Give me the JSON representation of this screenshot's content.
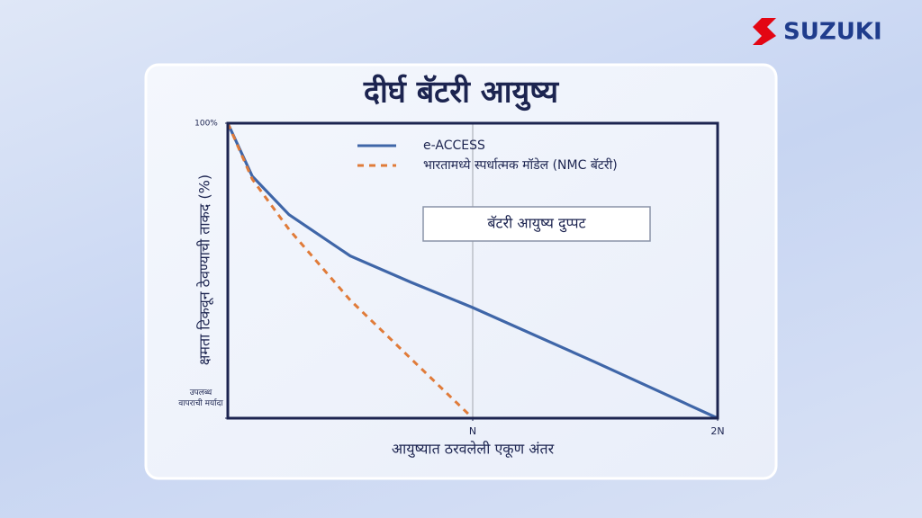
{
  "brand": "SUZUKI",
  "chart_data": {
    "type": "line",
    "title": "दीर्घ बॅटरी आयुष्य",
    "y_label": "क्षमता टिकवून ठेवण्याची ताकद (%)",
    "x_label": "आयुष्यात ठरवलेली एकूण अंतर",
    "annotation": "बॅटरी आयुष्य दुप्पट",
    "xlim": [
      0,
      2
    ],
    "xticks": [
      {
        "value": 1,
        "label": "N"
      },
      {
        "value": 2,
        "label": "2N"
      }
    ],
    "ylim": [
      0,
      100
    ],
    "yticks": [
      {
        "value": 0,
        "label": "उपलब्ध वापराची मर्यादा"
      },
      {
        "value": 100,
        "label": "100%"
      }
    ],
    "series": [
      {
        "name": "e-ACCESS",
        "color": "#3f66a8",
        "line_style": "solid",
        "x": [
          0,
          0.1,
          0.25,
          0.5,
          0.75,
          1,
          1.5,
          2
        ],
        "values": [
          100,
          82,
          69,
          55,
          46,
          37.5,
          19,
          0
        ]
      },
      {
        "name": "भारतामध्ये स्पर्धात्मक मॉडेल (NMC बॅटरी)",
        "color": "#e07b39",
        "line_style": "dashed",
        "x": [
          0,
          0.1,
          0.25,
          0.5,
          0.75,
          1
        ],
        "values": [
          100,
          81,
          64,
          40,
          20,
          0
        ]
      }
    ]
  }
}
